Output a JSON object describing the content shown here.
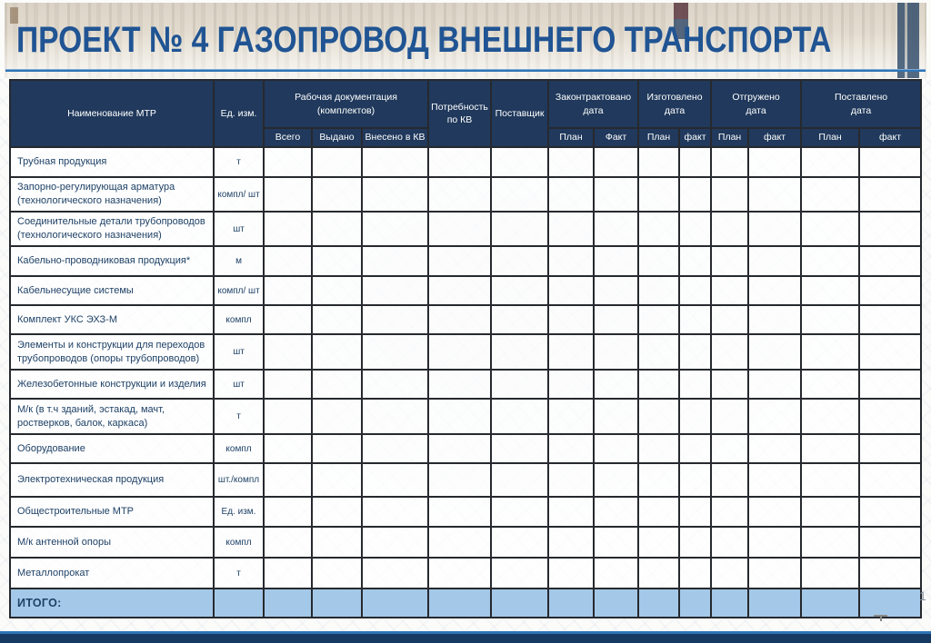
{
  "page": {
    "title": "ПРОЕКТ № 4 ГАЗОПРОВОД ВНЕШНЕГО ТРАНСПОРТА",
    "page_number": "1"
  },
  "colors": {
    "title": "#205493",
    "header_bg": "#20395c",
    "total_row_bg": "#a4c8e8",
    "accent_rule": "#2e74b5",
    "footer_bar": "#173a63",
    "grid": "#26292e"
  },
  "table": {
    "header": {
      "name": "Наименование МТР",
      "unit": "Ед. изм.",
      "docs_group": "Рабочая документация\n(комплектов)",
      "docs_total": "Всего",
      "docs_issued": "Выдано",
      "docs_entered": "Внесено в КВ",
      "need": "Потребность\nпо КВ",
      "supplier": "Поставщик",
      "date_groups": [
        {
          "label": "Законтрактовано\nдата",
          "plan": "План",
          "fact": "Факт"
        },
        {
          "label": "Изготовлено\nдата",
          "plan": "План",
          "fact": "факт"
        },
        {
          "label": "Отгружено\nдата",
          "plan": "План",
          "fact": "факт"
        },
        {
          "label": "Поставлено\nдата",
          "plan": "План",
          "fact": "факт"
        }
      ]
    },
    "rows": [
      {
        "name": "Трубная продукция",
        "unit": "т"
      },
      {
        "name": "Запорно-регулирующая арматура\n(технологического назначения)",
        "unit": "компл/ шт"
      },
      {
        "name": "Соединительные детали трубопроводов\n(технологического назначения)",
        "unit": "шт"
      },
      {
        "name": "Кабельно-проводниковая продукция*",
        "unit": "м"
      },
      {
        "name": "Кабельнесущие системы",
        "unit": "компл/ шт"
      },
      {
        "name": "Комплект УКС ЭХЗ-М",
        "unit": "компл"
      },
      {
        "name": "Элементы и конструкции для переходов\nтрубопроводов (опоры трубопроводов)",
        "unit": "шт"
      },
      {
        "name": "Железобетонные конструкции и изделия",
        "unit": "шт"
      },
      {
        "name": "М/к (в т.ч зданий, эстакад, мачт,\nростверков, балок, каркаса)",
        "unit": "т"
      },
      {
        "name": "Оборудование",
        "unit": "компл"
      },
      {
        "name": "Электротехническая продукция",
        "unit": "шт./компл"
      },
      {
        "name": "Общестроительные МТР",
        "unit": "Ед. изм."
      },
      {
        "name": "М/к антенной опоры",
        "unit": "компл"
      },
      {
        "name": "Металлопрокат",
        "unit": "т"
      }
    ],
    "total_label": "ИТОГО:"
  }
}
